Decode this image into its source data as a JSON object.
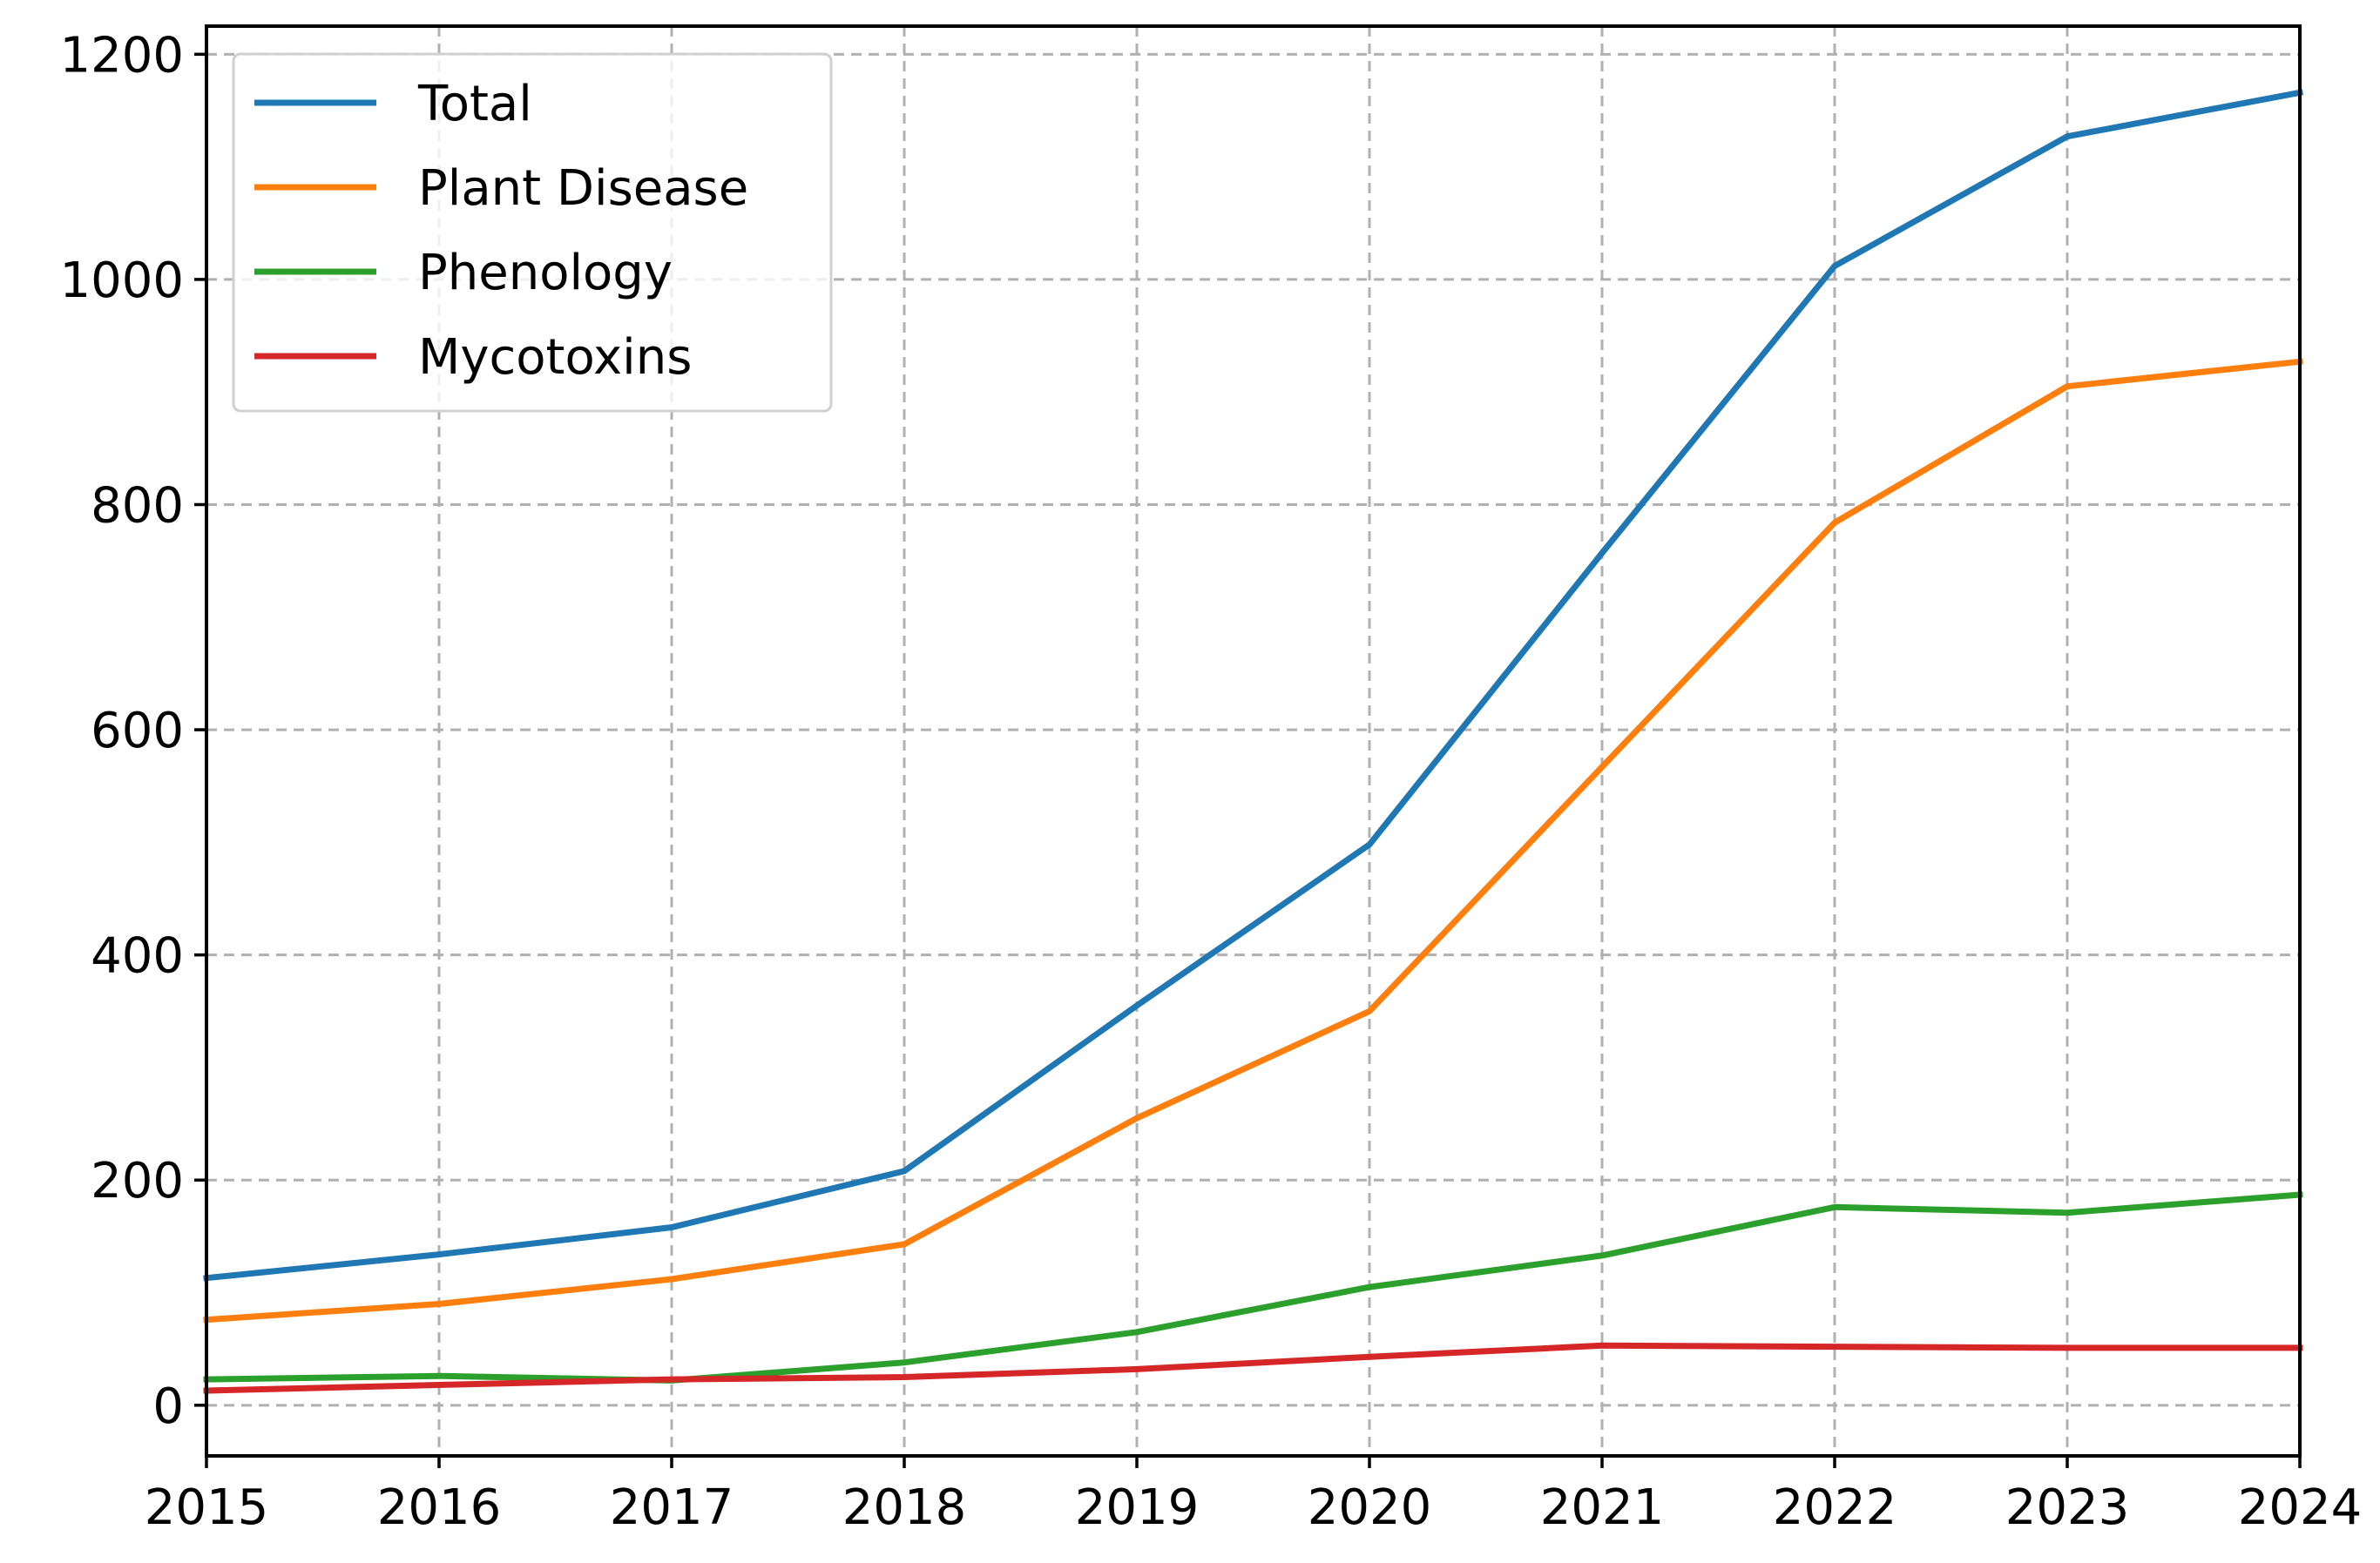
{
  "chart_data": {
    "type": "line",
    "title": "",
    "xlabel": "",
    "ylabel": "",
    "x": [
      2015,
      2016,
      2017,
      2018,
      2019,
      2020,
      2021,
      2022,
      2023,
      2024
    ],
    "xlim": [
      2015,
      2024
    ],
    "ylim": [
      -45,
      1225
    ],
    "xticks": [
      "2015",
      "2016",
      "2017",
      "2018",
      "2019",
      "2020",
      "2021",
      "2022",
      "2023",
      "2024"
    ],
    "yticks": [
      0,
      200,
      400,
      600,
      800,
      1000,
      1200
    ],
    "ytick_labels": [
      "0",
      "200",
      "400",
      "600",
      "800",
      "1000",
      "1200"
    ],
    "grid": true,
    "legend_position": "top-left",
    "series": [
      {
        "name": "Total",
        "color": "#1f77b4",
        "values": [
          113,
          134,
          158,
          208,
          355,
          498,
          757,
          1012,
          1127,
          1166
        ]
      },
      {
        "name": "Plant Disease",
        "color": "#ff7f0e",
        "values": [
          76,
          90,
          112,
          143,
          255,
          350,
          567,
          784,
          905,
          927
        ]
      },
      {
        "name": "Phenology",
        "color": "#2ca02c",
        "values": [
          23,
          26,
          22,
          38,
          65,
          105,
          133,
          176,
          171,
          187
        ]
      },
      {
        "name": "Mycotoxins",
        "color": "#d62728",
        "values": [
          13,
          18,
          23,
          25,
          32,
          43,
          53,
          52,
          51,
          51
        ]
      }
    ]
  }
}
